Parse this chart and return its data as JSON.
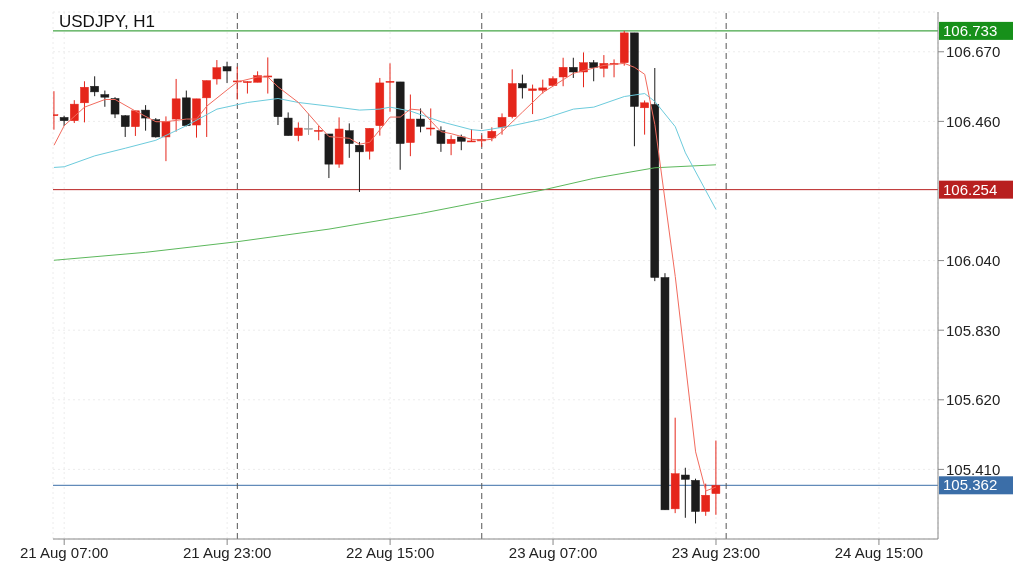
{
  "chart_data": {
    "type": "candlestick",
    "title": "USDJPY, H1",
    "x": [
      "--08-21T06:00",
      "--08-21T07:00",
      "--08-21T08:00",
      "--08-21T09:00",
      "--08-21T10:00",
      "--08-21T11:00",
      "--08-21T12:00",
      "--08-21T13:00",
      "--08-21T14:00",
      "--08-21T15:00",
      "--08-21T16:00",
      "--08-21T17:00",
      "--08-21T18:00",
      "--08-21T19:00",
      "--08-21T20:00",
      "--08-21T21:00",
      "--08-21T22:00",
      "--08-21T23:00",
      "--08-22T00:00",
      "--08-22T01:00",
      "--08-22T02:00",
      "--08-22T03:00",
      "--08-22T04:00",
      "--08-22T05:00",
      "--08-22T06:00",
      "--08-22T07:00",
      "--08-22T08:00",
      "--08-22T09:00",
      "--08-22T10:00",
      "--08-22T11:00",
      "--08-22T12:00",
      "--08-22T13:00",
      "--08-22T14:00",
      "--08-22T15:00",
      "--08-22T16:00",
      "--08-22T17:00",
      "--08-22T18:00",
      "--08-22T19:00",
      "--08-22T20:00",
      "--08-22T21:00",
      "--08-22T22:00",
      "--08-22T23:00",
      "--08-23T00:00",
      "--08-23T01:00",
      "--08-23T02:00",
      "--08-23T03:00",
      "--08-23T04:00",
      "--08-23T05:00",
      "--08-23T06:00",
      "--08-23T07:00",
      "--08-23T08:00",
      "--08-23T09:00",
      "--08-23T10:00",
      "--08-23T11:00",
      "--08-23T12:00",
      "--08-23T13:00",
      "--08-23T14:00",
      "--08-23T15:00",
      "--08-23T16:00",
      "--08-23T17:00",
      "--08-23T18:00",
      "--08-23T19:00",
      "--08-23T20:00",
      "--08-23T21:00",
      "--08-23T22:00",
      "--08-23T23:00"
    ],
    "ohlc": [
      [
        106.478,
        106.551,
        106.435,
        106.48
      ],
      [
        106.472,
        106.477,
        106.446,
        106.462
      ],
      [
        106.462,
        106.524,
        106.455,
        106.512
      ],
      [
        106.516,
        106.581,
        106.457,
        106.563
      ],
      [
        106.566,
        106.596,
        106.536,
        106.549
      ],
      [
        106.541,
        106.553,
        106.504,
        106.533
      ],
      [
        106.529,
        106.533,
        106.47,
        106.482
      ],
      [
        106.477,
        106.479,
        106.413,
        106.444
      ],
      [
        106.444,
        106.492,
        106.416,
        106.492
      ],
      [
        106.494,
        106.509,
        106.432,
        106.47
      ],
      [
        106.465,
        106.47,
        106.411,
        106.413
      ],
      [
        106.413,
        106.475,
        106.34,
        106.46
      ],
      [
        106.467,
        106.588,
        106.429,
        106.528
      ],
      [
        106.531,
        106.553,
        106.445,
        106.447
      ],
      [
        106.449,
        106.528,
        106.411,
        106.528
      ],
      [
        106.531,
        106.583,
        106.413,
        106.583
      ],
      [
        106.588,
        106.645,
        106.571,
        106.622
      ],
      [
        106.625,
        106.64,
        106.576,
        106.612
      ],
      [
        106.579,
        106.625,
        106.526,
        106.582
      ],
      [
        106.578,
        106.581,
        106.544,
        106.58
      ],
      [
        106.578,
        106.611,
        106.578,
        106.598
      ],
      [
        106.594,
        106.653,
        106.544,
        106.597
      ],
      [
        106.588,
        106.588,
        106.449,
        106.474
      ],
      [
        106.47,
        106.487,
        106.417,
        106.417
      ],
      [
        106.417,
        106.457,
        106.4,
        106.44
      ],
      [
        106.439,
        106.484,
        106.419,
        106.439
      ],
      [
        106.431,
        106.447,
        106.403,
        106.433
      ],
      [
        106.422,
        106.422,
        106.289,
        106.331
      ],
      [
        106.331,
        106.472,
        106.32,
        106.437
      ],
      [
        106.432,
        106.454,
        106.35,
        106.393
      ],
      [
        106.388,
        106.398,
        106.247,
        106.368
      ],
      [
        106.37,
        106.439,
        106.345,
        106.439
      ],
      [
        106.447,
        106.591,
        106.417,
        106.576
      ],
      [
        106.579,
        106.635,
        106.489,
        106.581
      ],
      [
        106.579,
        106.579,
        106.314,
        106.393
      ],
      [
        106.396,
        106.541,
        106.355,
        106.467
      ],
      [
        106.467,
        106.499,
        106.427,
        106.445
      ],
      [
        106.438,
        106.499,
        106.417,
        106.44
      ],
      [
        106.432,
        106.445,
        106.368,
        106.393
      ],
      [
        106.393,
        106.418,
        106.358,
        106.406
      ],
      [
        106.413,
        106.42,
        106.373,
        106.4
      ],
      [
        106.399,
        106.437,
        106.398,
        106.401
      ],
      [
        106.401,
        106.418,
        106.383,
        106.406
      ],
      [
        106.41,
        106.442,
        106.4,
        106.43
      ],
      [
        106.442,
        106.484,
        106.42,
        106.472
      ],
      [
        106.474,
        106.617,
        106.469,
        106.574
      ],
      [
        106.574,
        106.601,
        106.529,
        106.561
      ],
      [
        106.553,
        106.571,
        106.482,
        106.558
      ],
      [
        106.554,
        106.586,
        106.544,
        106.561
      ],
      [
        106.568,
        106.596,
        106.566,
        106.589
      ],
      [
        106.594,
        106.652,
        106.566,
        106.623
      ],
      [
        106.623,
        106.652,
        106.591,
        106.609
      ],
      [
        106.609,
        106.668,
        106.563,
        106.637
      ],
      [
        106.637,
        106.645,
        106.581,
        106.622
      ],
      [
        106.62,
        106.66,
        106.593,
        106.635
      ],
      [
        106.633,
        106.647,
        106.593,
        106.635
      ],
      [
        106.637,
        106.733,
        106.628,
        106.727
      ],
      [
        106.727,
        106.727,
        106.385,
        106.505
      ],
      [
        106.501,
        106.523,
        106.42,
        106.516
      ],
      [
        106.511,
        106.621,
        105.978,
        105.989
      ],
      [
        105.989,
        106.002,
        105.288,
        105.288
      ],
      [
        105.291,
        105.566,
        105.278,
        105.397
      ],
      [
        105.393,
        105.415,
        105.264,
        105.38
      ],
      [
        105.377,
        105.382,
        105.247,
        105.283
      ],
      [
        105.283,
        105.367,
        105.27,
        105.332
      ],
      [
        105.337,
        105.497,
        105.273,
        105.362
      ]
    ],
    "colors": [
      "#e5261b",
      "#1c1c1c",
      "#e5261b",
      "#e5261b",
      "#1c1c1c",
      "#1c1c1c",
      "#1c1c1c",
      "#1c1c1c",
      "#e5261b",
      "#1c1c1c",
      "#1c1c1c",
      "#e5261b",
      "#e5261b",
      "#1c1c1c",
      "#e5261b",
      "#e5261b",
      "#e5261b",
      "#1c1c1c",
      "#e5261b",
      "#e5261b",
      "#e5261b",
      "#e5261b",
      "#1c1c1c",
      "#1c1c1c",
      "#e5261b",
      "#9e9e9e",
      "#e5261b",
      "#1c1c1c",
      "#e5261b",
      "#1c1c1c",
      "#1c1c1c",
      "#e5261b",
      "#e5261b",
      "#e5261b",
      "#1c1c1c",
      "#e5261b",
      "#1c1c1c",
      "#e5261b",
      "#1c1c1c",
      "#e5261b",
      "#1c1c1c",
      "#e5261b",
      "#e5261b",
      "#e5261b",
      "#e5261b",
      "#e5261b",
      "#1c1c1c",
      "#e5261b",
      "#e5261b",
      "#e5261b",
      "#e5261b",
      "#1c1c1c",
      "#e5261b",
      "#1c1c1c",
      "#e5261b",
      "#e5261b",
      "#e5261b",
      "#1c1c1c",
      "#e5261b",
      "#1c1c1c",
      "#1c1c1c",
      "#e5261b",
      "#1c1c1c",
      "#1c1c1c",
      "#e5261b",
      "#e5261b"
    ],
    "series": [
      {
        "type": "line",
        "color": "#5cb85c",
        "x": [
          "--08-21T06:00",
          "--08-21T15:00",
          "--08-22T00:00",
          "--08-22T09:00",
          "--08-22T18:00",
          "--08-23T00:00",
          "--08-23T06:00",
          "--08-23T11:00",
          "--08-23T17:00",
          "--08-23T23:00"
        ],
        "values": [
          106.041,
          106.065,
          106.097,
          106.135,
          106.182,
          106.218,
          106.253,
          106.288,
          106.32,
          106.329
        ]
      },
      {
        "type": "line",
        "color": "#6ccbdc",
        "x": [
          "--08-21T06:00",
          "--08-21T07:00",
          "--08-21T10:00",
          "--08-21T13:00",
          "--08-21T16:00",
          "--08-21T19:00",
          "--08-21T22:00",
          "--08-22T01:00",
          "--08-22T04:00",
          "--08-22T06:00",
          "--08-22T09:00",
          "--08-22T12:00",
          "--08-22T14:00",
          "--08-22T15:00",
          "--08-22T17:00",
          "--08-22T20:00",
          "--08-22T23:00",
          "--08-23T00:00",
          "--08-23T03:00",
          "--08-23T06:00",
          "--08-23T09:00",
          "--08-23T11:00",
          "--08-23T14:00",
          "--08-23T16:00",
          "--08-23T17:00",
          "--08-23T19:00",
          "--08-23T20:00",
          "--08-23T23:00"
        ],
        "values": [
          106.321,
          106.323,
          106.356,
          106.379,
          106.403,
          106.447,
          106.497,
          106.517,
          106.529,
          106.517,
          106.506,
          106.494,
          106.497,
          106.503,
          106.491,
          106.459,
          106.435,
          106.432,
          106.447,
          106.467,
          106.497,
          106.503,
          106.535,
          106.544,
          106.52,
          106.444,
          106.365,
          106.194
        ]
      },
      {
        "type": "line",
        "color": "#f26b5e",
        "x": [
          "--08-21T06:00",
          "--08-21T07:00",
          "--08-21T09:00",
          "--08-21T11:00",
          "--08-21T12:00",
          "--08-21T14:00",
          "--08-21T16:00",
          "--08-21T17:00",
          "--08-21T19:00",
          "--08-21T20:00",
          "--08-21T21:00",
          "--08-21T23:00",
          "--08-22T00:00",
          "--08-22T02:00",
          "--08-22T03:00",
          "--08-22T04:00",
          "--08-22T06:00",
          "--08-22T08:00",
          "--08-22T09:00",
          "--08-22T11:00",
          "--08-22T12:00",
          "--08-22T13:00",
          "--08-22T15:00",
          "--08-22T16:00",
          "--08-22T17:00",
          "--08-22T18:00",
          "--08-22T20:00",
          "--08-22T21:00",
          "--08-22T23:00",
          "--08-23T00:00",
          "--08-23T01:00",
          "--08-23T02:00",
          "--08-23T04:00",
          "--08-23T06:00",
          "--08-23T09:00",
          "--08-23T12:00",
          "--08-23T14:00",
          "--08-23T15:00",
          "--08-23T16:00",
          "--08-23T17:00",
          "--08-23T19:00",
          "--08-23T21:00",
          "--08-23T22:00",
          "--08-23T23:00"
        ],
        "values": [
          106.388,
          106.447,
          106.503,
          106.526,
          106.526,
          106.491,
          106.459,
          106.459,
          106.467,
          106.467,
          106.506,
          106.555,
          106.579,
          106.594,
          106.594,
          106.564,
          106.517,
          106.447,
          106.414,
          106.409,
          106.391,
          106.397,
          106.473,
          106.473,
          106.497,
          106.494,
          106.429,
          106.423,
          106.406,
          106.403,
          106.406,
          106.429,
          106.488,
          106.547,
          106.605,
          106.629,
          106.635,
          106.623,
          106.602,
          106.45,
          105.992,
          105.463,
          105.345,
          105.357
        ]
      }
    ],
    "ref_lines": [
      {
        "axis": "y",
        "value": 106.733,
        "label": "106.733",
        "color": "#17901a"
      },
      {
        "axis": "y",
        "value": 106.254,
        "label": "106.254",
        "color": "#b82020"
      },
      {
        "axis": "y",
        "value": 105.362,
        "label": "105.362",
        "color": "#3b6ea8"
      },
      {
        "axis": "x",
        "value": "--08-22T00:00",
        "color": "#555555",
        "line_style": "dashed"
      },
      {
        "axis": "x",
        "value": "--08-23T00:00",
        "color": "#555555",
        "line_style": "dashed"
      },
      {
        "axis": "x",
        "value": "--08-24T00:00",
        "color": "#555555",
        "line_style": "dashed"
      }
    ],
    "xlim": [
      "--08-21T05:54",
      "--08-24T20:48"
    ],
    "xticks": [
      {
        "value": "--08-21T07:00",
        "label": "21 Aug 07:00"
      },
      {
        "value": "--08-21T23:00",
        "label": "21 Aug 23:00"
      },
      {
        "value": "--08-22T15:00",
        "label": "22 Aug 15:00"
      },
      {
        "value": "--08-23T07:00",
        "label": "23 Aug 07:00"
      },
      {
        "value": "--08-23T23:00",
        "label": "23 Aug 23:00"
      },
      {
        "value": "--08-24T15:00",
        "label": "24 Aug 15:00"
      }
    ],
    "ylim": [
      105.2,
      106.79
    ],
    "yticks": [
      {
        "value": 106.67,
        "label": "106.670"
      },
      {
        "value": 106.46,
        "label": "106.460"
      },
      {
        "value": 106.04,
        "label": "106.040"
      },
      {
        "value": 105.83,
        "label": "105.830"
      },
      {
        "value": 105.62,
        "label": "105.620"
      },
      {
        "value": 105.41,
        "label": "105.410"
      }
    ],
    "grid": true
  }
}
